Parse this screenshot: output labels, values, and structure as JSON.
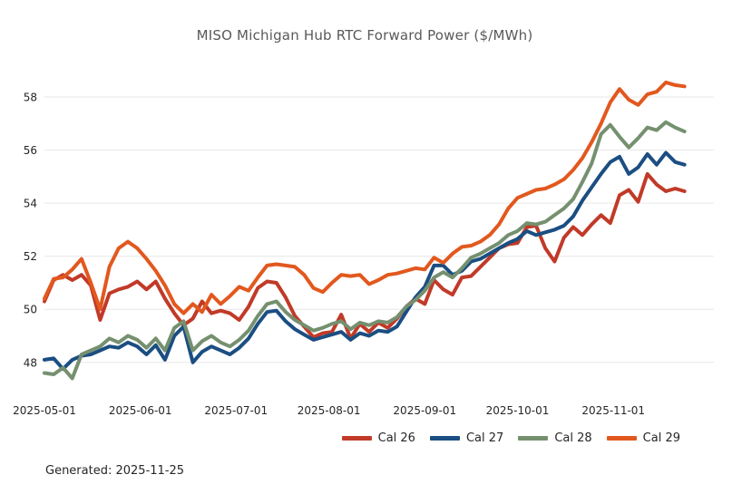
{
  "title": "MISO Michigan Hub RTC Forward Power ($/MWh)",
  "footer": {
    "generated_label": "Generated: 2025-11-25"
  },
  "colors": {
    "cal26": "#c13a28",
    "cal27": "#1b4e82",
    "cal28": "#75906f",
    "cal29": "#e2581e",
    "gridline": "#e7e7e7",
    "title_text": "#595959",
    "tick_text": "#262626"
  },
  "chart_data": {
    "type": "line",
    "title": "MISO Michigan Hub RTC Forward Power ($/MWh)",
    "xlabel": "",
    "ylabel": "",
    "x_start_date": "2025-05-01",
    "x_end_date": "2025-11-24",
    "x_sample_step_days": 3,
    "x_total_days": 207,
    "x_ticks": [
      {
        "label": "2025-05-01",
        "offset": 0
      },
      {
        "label": "2025-06-01",
        "offset": 31
      },
      {
        "label": "2025-07-01",
        "offset": 62
      },
      {
        "label": "2025-08-01",
        "offset": 92
      },
      {
        "label": "2025-09-01",
        "offset": 123
      },
      {
        "label": "2025-10-01",
        "offset": 153
      },
      {
        "label": "2025-11-01",
        "offset": 184
      }
    ],
    "y_ticks": [
      48,
      50,
      52,
      54,
      56,
      58
    ],
    "ylim": [
      46.9,
      58.65
    ],
    "grid": "horizontal",
    "legend_position": "bottom-right",
    "series": [
      {
        "name": "Cal 26",
        "color": "#c13a28",
        "values": [
          50.3,
          51.1,
          51.3,
          51.1,
          51.3,
          50.9,
          49.6,
          50.6,
          50.75,
          50.85,
          51.05,
          50.75,
          51.05,
          50.4,
          49.85,
          49.4,
          49.65,
          50.3,
          49.85,
          49.95,
          49.85,
          49.6,
          50.1,
          50.8,
          51.05,
          51.0,
          50.45,
          49.75,
          49.35,
          48.95,
          49.1,
          49.15,
          49.8,
          48.9,
          49.45,
          49.15,
          49.5,
          49.3,
          49.65,
          50.1,
          50.4,
          50.2,
          51.1,
          50.75,
          50.55,
          51.2,
          51.25,
          51.6,
          51.95,
          52.3,
          52.45,
          52.5,
          53.1,
          53.15,
          52.3,
          51.8,
          52.7,
          53.1,
          52.8,
          53.2,
          53.55,
          53.25,
          54.3,
          54.5,
          54.05,
          55.1,
          54.7,
          54.45,
          54.55,
          54.45
        ]
      },
      {
        "name": "Cal 27",
        "color": "#1b4e82",
        "values": [
          48.1,
          48.15,
          47.75,
          48.1,
          48.25,
          48.3,
          48.45,
          48.6,
          48.55,
          48.75,
          48.6,
          48.3,
          48.65,
          48.1,
          49.0,
          49.35,
          48.0,
          48.4,
          48.6,
          48.45,
          48.3,
          48.55,
          48.9,
          49.45,
          49.9,
          49.95,
          49.55,
          49.25,
          49.05,
          48.85,
          48.95,
          49.05,
          49.15,
          48.85,
          49.1,
          49.0,
          49.2,
          49.15,
          49.35,
          49.9,
          50.45,
          50.85,
          51.65,
          51.65,
          51.3,
          51.45,
          51.8,
          51.9,
          52.1,
          52.3,
          52.5,
          52.65,
          52.95,
          52.8,
          52.9,
          53.0,
          53.15,
          53.5,
          54.1,
          54.6,
          55.1,
          55.55,
          55.75,
          55.1,
          55.35,
          55.85,
          55.45,
          55.9,
          55.55,
          55.45
        ]
      },
      {
        "name": "Cal 28",
        "color": "#75906f",
        "values": [
          47.6,
          47.55,
          47.8,
          47.4,
          48.3,
          48.45,
          48.6,
          48.9,
          48.75,
          49.0,
          48.85,
          48.55,
          48.9,
          48.45,
          49.3,
          49.55,
          48.45,
          48.8,
          49.0,
          48.75,
          48.6,
          48.85,
          49.2,
          49.75,
          50.2,
          50.3,
          49.9,
          49.6,
          49.4,
          49.2,
          49.3,
          49.45,
          49.55,
          49.25,
          49.5,
          49.4,
          49.55,
          49.5,
          49.7,
          50.1,
          50.35,
          50.7,
          51.2,
          51.4,
          51.2,
          51.55,
          51.95,
          52.1,
          52.3,
          52.5,
          52.8,
          52.95,
          53.25,
          53.2,
          53.3,
          53.55,
          53.8,
          54.15,
          54.8,
          55.5,
          56.6,
          56.95,
          56.5,
          56.1,
          56.45,
          56.85,
          56.75,
          57.05,
          56.85,
          56.7
        ]
      },
      {
        "name": "Cal 29",
        "color": "#e2581e",
        "values": [
          50.4,
          51.15,
          51.2,
          51.5,
          51.9,
          51.0,
          50.0,
          51.6,
          52.3,
          52.55,
          52.3,
          51.9,
          51.45,
          50.9,
          50.2,
          49.85,
          50.2,
          49.9,
          50.55,
          50.2,
          50.5,
          50.85,
          50.7,
          51.2,
          51.65,
          51.7,
          51.65,
          51.6,
          51.3,
          50.8,
          50.65,
          51.0,
          51.3,
          51.25,
          51.3,
          50.95,
          51.1,
          51.3,
          51.35,
          51.45,
          51.55,
          51.5,
          51.95,
          51.75,
          52.1,
          52.35,
          52.4,
          52.55,
          52.8,
          53.2,
          53.8,
          54.2,
          54.35,
          54.5,
          54.55,
          54.7,
          54.9,
          55.25,
          55.7,
          56.3,
          57.0,
          57.8,
          58.3,
          57.9,
          57.7,
          58.1,
          58.2,
          58.55,
          58.45,
          58.4
        ]
      }
    ]
  }
}
